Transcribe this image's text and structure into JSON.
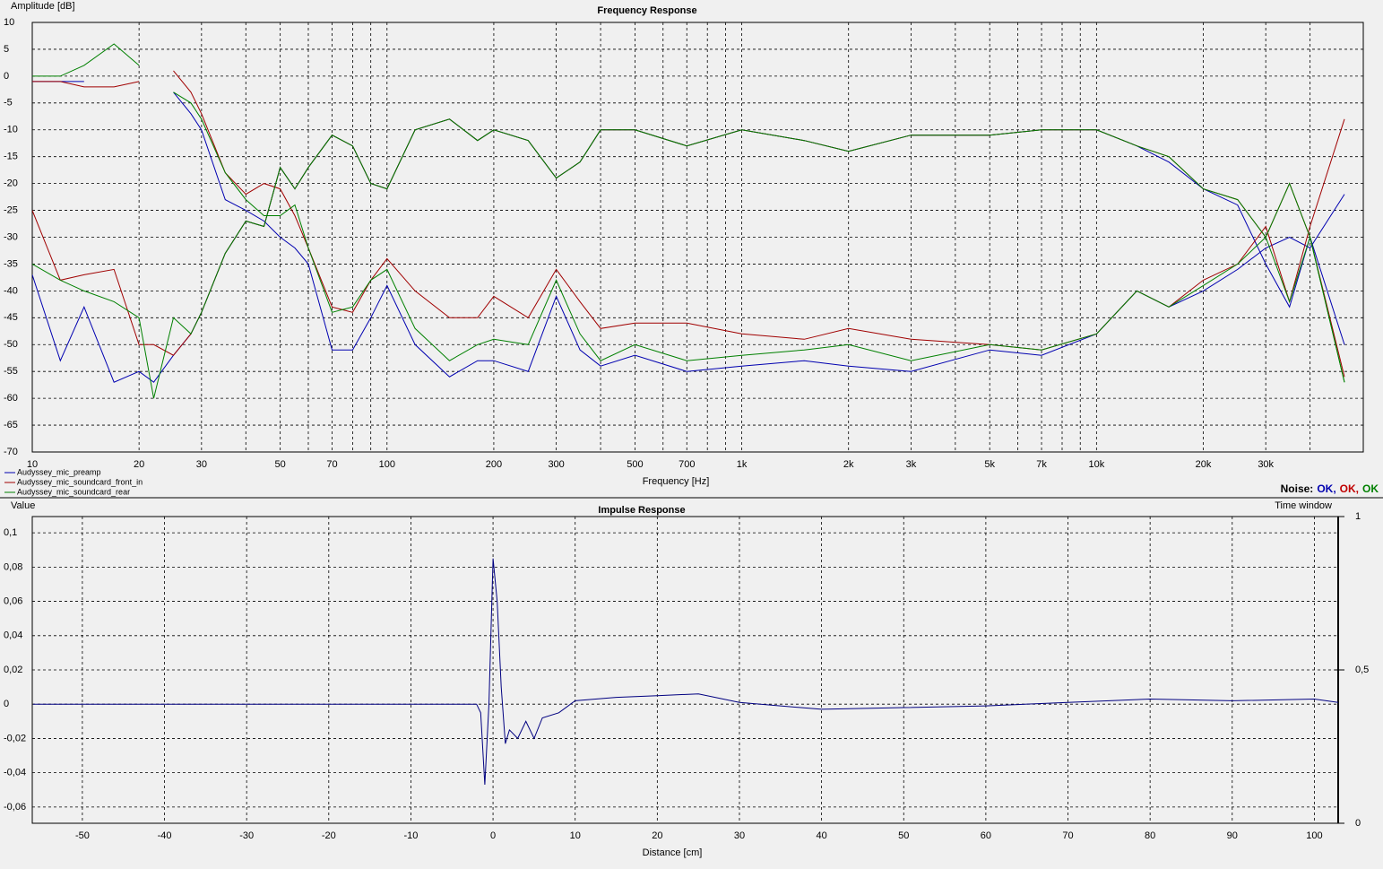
{
  "chart_data": [
    {
      "type": "line",
      "title": "Frequency Response",
      "y_label": "Amplitude [dB]",
      "x_label": "Frequency [Hz]",
      "log_x": true,
      "grid": true,
      "legend": "bottom-left",
      "xlim": [
        10,
        56500
      ],
      "ylim": [
        -70,
        10
      ],
      "yticks": [
        10,
        5,
        0,
        -5,
        -10,
        -15,
        -20,
        -25,
        -30,
        -35,
        -40,
        -45,
        -50,
        -55,
        -60,
        -65,
        -70
      ],
      "xticks": [
        10,
        20,
        30,
        50,
        70,
        100,
        200,
        300,
        500,
        700,
        {
          "value": 1000,
          "label": "1k"
        },
        {
          "value": 2000,
          "label": "2k"
        },
        {
          "value": 3000,
          "label": "3k"
        },
        {
          "value": 5000,
          "label": "5k"
        },
        {
          "value": 7000,
          "label": "7k"
        },
        {
          "value": 10000,
          "label": "10k"
        },
        {
          "value": 20000,
          "label": "20k"
        },
        {
          "value": 30000,
          "label": "30k"
        }
      ],
      "xminor": [
        40,
        60,
        80,
        90,
        400,
        600,
        800,
        900,
        4000,
        6000,
        8000,
        9000,
        40000
      ],
      "x": [
        10,
        12,
        14,
        17,
        20,
        22,
        25,
        28,
        30,
        35,
        40,
        45,
        50,
        55,
        60,
        70,
        80,
        90,
        100,
        120,
        150,
        180,
        200,
        250,
        300,
        350,
        400,
        500,
        700,
        1000,
        1500,
        2000,
        3000,
        5000,
        7000,
        10000,
        13000,
        16000,
        20000,
        25000,
        30000,
        35000,
        40000,
        50000
      ],
      "series": [
        {
          "name": "Audyssey_mic_preamp",
          "color": "#0000b0",
          "values": [
            -37,
            -53,
            -43,
            -57,
            -55,
            -57,
            -52,
            -48,
            -44,
            -33,
            -27,
            -28,
            -17,
            -21,
            -17,
            -11,
            -13,
            -20,
            -21,
            -10,
            -8,
            -12,
            -10,
            -12,
            -19,
            -16,
            -10,
            -10,
            -13,
            -10,
            -12,
            -14,
            -11,
            -11,
            -10,
            -10,
            -13,
            -16,
            -21,
            -24,
            -35,
            -43,
            -30,
            -50
          ],
          "values_low": [
            -1,
            -1,
            -1,
            null,
            null,
            null,
            -3,
            -7,
            -10,
            -23,
            -25,
            -27,
            -30,
            -32,
            -35,
            -51,
            -51,
            -45,
            -39,
            -50,
            -56,
            -53,
            -53,
            -55,
            -41,
            -51,
            -54,
            -52,
            -55,
            -54,
            -53,
            -54,
            -55,
            -51,
            -52,
            -48,
            -40,
            -43,
            -40,
            -36,
            -32,
            -30,
            -32,
            -22
          ]
        },
        {
          "name": "Audyssey_mic_soundcard_front_in",
          "color": "#a00000",
          "values": [
            -25,
            -38,
            -37,
            -36,
            -50,
            -50,
            -52,
            -48,
            -44,
            -33,
            -27,
            -28,
            -17,
            -21,
            -17,
            -11,
            -13,
            -20,
            -21,
            -10,
            -8,
            -12,
            -10,
            -12,
            -19,
            -16,
            -10,
            -10,
            -13,
            -10,
            -12,
            -14,
            -11,
            -11,
            -10,
            -10,
            -13,
            -15,
            -21,
            -23,
            -30,
            -20,
            -30,
            -56
          ],
          "values_low": [
            -1,
            -1,
            -2,
            -2,
            -1,
            null,
            1,
            -3,
            -7,
            -18,
            -22,
            -20,
            -21,
            -26,
            -32,
            -43,
            -44,
            -38,
            -34,
            -40,
            -45,
            -45,
            -41,
            -45,
            -36,
            -42,
            -47,
            -46,
            -46,
            -48,
            -49,
            -47,
            -49,
            -50,
            -51,
            -48,
            -40,
            -43,
            -38,
            -35,
            -28,
            -42,
            -28,
            -8
          ]
        },
        {
          "name": "Audyssey_mic_soundcard_rear",
          "color": "#008000",
          "values": [
            -35,
            -38,
            -40,
            -42,
            -45,
            -60,
            -45,
            -48,
            -44,
            -33,
            -27,
            -28,
            -17,
            -21,
            -17,
            -11,
            -13,
            -20,
            -21,
            -10,
            -8,
            -12,
            -10,
            -12,
            -19,
            -16,
            -10,
            -10,
            -13,
            -10,
            -12,
            -14,
            -11,
            -11,
            -10,
            -10,
            -13,
            -15,
            -21,
            -23,
            -30,
            -20,
            -30,
            -57
          ],
          "values_low": [
            0,
            0,
            2,
            6,
            2,
            null,
            -3,
            -5,
            -8,
            -18,
            -23,
            -26,
            -26,
            -24,
            -32,
            -44,
            -43,
            -38,
            -36,
            -47,
            -53,
            -50,
            -49,
            -50,
            -38,
            -48,
            -53,
            -50,
            -53,
            -52,
            -51,
            -50,
            -53,
            -50,
            -51,
            -48,
            -40,
            -43,
            -39,
            -35,
            -30,
            -42,
            -30,
            -57
          ]
        }
      ],
      "noise_label": "Noise:",
      "noise": [
        {
          "text": "OK,",
          "color": "#0000b0"
        },
        {
          "text": "OK,",
          "color": "#c00000"
        },
        {
          "text": "OK",
          "color": "#008000"
        }
      ]
    },
    {
      "type": "line",
      "title": "Impulse Response",
      "y_label": "Value",
      "x_label": "Distance [cm]",
      "y2_label": "Time window",
      "grid": true,
      "xlim": [
        -56.1,
        102.9
      ],
      "ylim": [
        -0.0695,
        0.1095
      ],
      "y2lim": [
        0,
        1
      ],
      "xticks": [
        -50,
        -40,
        -30,
        -20,
        -10,
        0,
        10,
        20,
        30,
        40,
        50,
        60,
        70,
        80,
        90,
        100
      ],
      "yticks": [
        {
          "value": 0.1,
          "label": "0,1"
        },
        {
          "value": 0.08,
          "label": "0,08"
        },
        {
          "value": 0.06,
          "label": "0,06"
        },
        {
          "value": 0.04,
          "label": "0,04"
        },
        {
          "value": 0.02,
          "label": "0,02"
        },
        0,
        {
          "value": -0.02,
          "label": "-0,02"
        },
        {
          "value": -0.04,
          "label": "-0,04"
        },
        {
          "value": -0.06,
          "label": "-0,06"
        }
      ],
      "y2ticks": [
        1,
        {
          "value": 0.5,
          "label": "0,5"
        },
        0
      ],
      "x": [
        -56,
        -2,
        -1.5,
        -1,
        -0.5,
        0,
        0.5,
        1,
        1.5,
        2,
        3,
        4,
        5,
        6,
        8,
        10,
        15,
        20,
        25,
        30,
        40,
        50,
        60,
        70,
        80,
        90,
        100,
        102.9
      ],
      "series": [
        {
          "color": "#000080",
          "values": [
            0,
            0,
            -0.005,
            -0.047,
            0,
            0.085,
            0.06,
            0.01,
            -0.023,
            -0.015,
            -0.02,
            -0.01,
            -0.02,
            -0.008,
            -0.005,
            0.002,
            0.004,
            0.005,
            0.006,
            0.001,
            -0.003,
            -0.002,
            -0.001,
            0.001,
            0.003,
            0.002,
            0.003,
            0.001
          ]
        }
      ]
    }
  ]
}
